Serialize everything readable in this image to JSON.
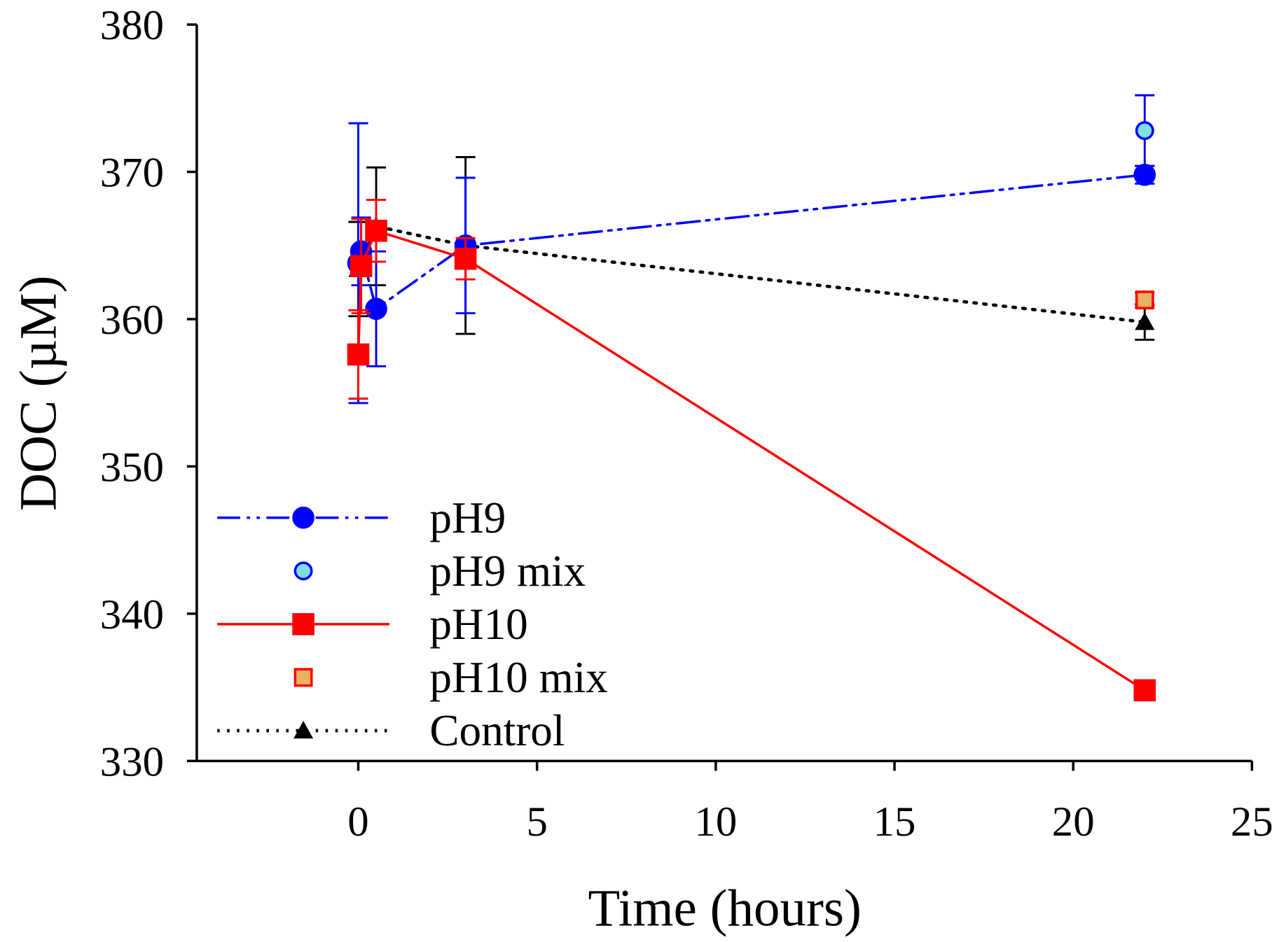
{
  "chart_data": {
    "type": "line",
    "title": "",
    "xlabel": "Time (hours)",
    "ylabel": "DOC (µM)",
    "xlim": [
      -4.5,
      25
    ],
    "ylim": [
      330,
      380
    ],
    "xticks": [
      0,
      5,
      10,
      15,
      20,
      25
    ],
    "yticks": [
      330,
      340,
      350,
      360,
      370,
      380
    ],
    "legend_position": "bottom-left",
    "grid": false,
    "series": [
      {
        "name": "pH9",
        "color": "#0000ff",
        "fill": "#0000ff",
        "marker": "circle",
        "line": "dashdotdot",
        "x": [
          0,
          0.08,
          0.5,
          3,
          22
        ],
        "y": [
          363.8,
          364.6,
          360.7,
          365.0,
          369.8
        ],
        "err": [
          9.5,
          2.3,
          3.9,
          4.6,
          0.6
        ]
      },
      {
        "name": "pH9 mix",
        "color": "#0000ff",
        "fill": "#7fdfe0",
        "marker": "circle",
        "line": "none",
        "x": [
          22
        ],
        "y": [
          372.8
        ],
        "err": [
          2.4
        ]
      },
      {
        "name": "pH10",
        "color": "#ff0000",
        "fill": "#ff0000",
        "marker": "square",
        "line": "solid",
        "x": [
          0,
          0.08,
          0.5,
          3,
          22
        ],
        "y": [
          357.6,
          363.6,
          366.0,
          364.1,
          334.8
        ],
        "err": [
          3.0,
          3.2,
          2.1,
          1.4,
          0.5
        ]
      },
      {
        "name": "pH10 mix",
        "color": "#ff0000",
        "fill": "#e8b060",
        "marker": "square",
        "line": "none",
        "x": [
          22
        ],
        "y": [
          361.3
        ],
        "err": [
          0.5
        ]
      },
      {
        "name": "Control",
        "color": "#000000",
        "fill": "#000000",
        "marker": "triangle",
        "line": "dotted",
        "x": [
          0,
          0.5,
          3,
          22
        ],
        "y": [
          363.4,
          366.3,
          365.0,
          359.8
        ],
        "err": [
          3.2,
          4.0,
          6.0,
          1.2
        ]
      }
    ]
  }
}
